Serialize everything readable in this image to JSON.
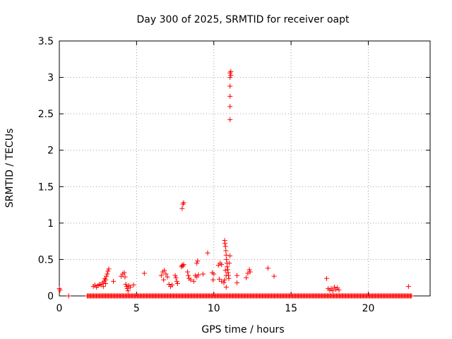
{
  "chart_data": {
    "type": "scatter",
    "title": "Day 300 of 2025, SRMTID for receiver oapt",
    "xlabel": "GPS time / hours",
    "ylabel": "SRMTID / TECUs",
    "xlim": [
      0,
      24
    ],
    "ylim": [
      0,
      3.5
    ],
    "xticks": [
      0,
      5,
      10,
      15,
      20
    ],
    "yticks": [
      0,
      0.5,
      1,
      1.5,
      2,
      2.5,
      3,
      3.5
    ],
    "ytick_labels": [
      "0",
      "0.5",
      "1",
      "1.5",
      "2",
      "2.5",
      "3",
      "3.5"
    ],
    "grid": true,
    "marker": "+",
    "color": "#ff0000",
    "zero_band": {
      "x_start": 1.8,
      "x_end": 22.8,
      "step": 0.06,
      "y": 0
    },
    "points": [
      [
        0.0,
        0.1
      ],
      [
        0.05,
        0.08
      ],
      [
        0.6,
        0.0
      ],
      [
        2.2,
        0.13
      ],
      [
        2.3,
        0.15
      ],
      [
        2.4,
        0.12
      ],
      [
        2.5,
        0.14
      ],
      [
        2.6,
        0.16
      ],
      [
        2.7,
        0.15
      ],
      [
        2.8,
        0.18
      ],
      [
        2.9,
        0.2
      ],
      [
        2.95,
        0.24
      ],
      [
        3.0,
        0.22
      ],
      [
        3.05,
        0.27
      ],
      [
        3.1,
        0.3
      ],
      [
        3.15,
        0.34
      ],
      [
        3.2,
        0.37
      ],
      [
        3.0,
        0.17
      ],
      [
        2.85,
        0.13
      ],
      [
        3.5,
        0.2
      ],
      [
        4.0,
        0.27
      ],
      [
        4.1,
        0.3
      ],
      [
        4.2,
        0.32
      ],
      [
        4.25,
        0.26
      ],
      [
        4.3,
        0.16
      ],
      [
        4.35,
        0.13
      ],
      [
        4.4,
        0.1
      ],
      [
        4.45,
        0.07
      ],
      [
        4.5,
        0.14
      ],
      [
        4.6,
        0.12
      ],
      [
        4.8,
        0.15
      ],
      [
        5.5,
        0.31
      ],
      [
        6.6,
        0.28
      ],
      [
        6.7,
        0.33
      ],
      [
        6.8,
        0.35
      ],
      [
        6.9,
        0.3
      ],
      [
        7.0,
        0.26
      ],
      [
        6.75,
        0.22
      ],
      [
        7.1,
        0.16
      ],
      [
        7.2,
        0.13
      ],
      [
        7.3,
        0.15
      ],
      [
        7.5,
        0.28
      ],
      [
        7.55,
        0.25
      ],
      [
        7.6,
        0.2
      ],
      [
        7.65,
        0.17
      ],
      [
        7.9,
        0.4
      ],
      [
        7.95,
        0.42
      ],
      [
        8.0,
        0.41
      ],
      [
        8.05,
        0.43
      ],
      [
        7.95,
        1.2
      ],
      [
        8.0,
        1.26
      ],
      [
        8.05,
        1.28
      ],
      [
        8.3,
        0.33
      ],
      [
        8.35,
        0.28
      ],
      [
        8.4,
        0.24
      ],
      [
        8.5,
        0.22
      ],
      [
        8.7,
        0.2
      ],
      [
        8.8,
        0.28
      ],
      [
        8.9,
        0.26
      ],
      [
        9.0,
        0.29
      ],
      [
        8.9,
        0.45
      ],
      [
        8.95,
        0.48
      ],
      [
        9.3,
        0.3
      ],
      [
        9.6,
        0.59
      ],
      [
        9.9,
        0.32
      ],
      [
        10.0,
        0.3
      ],
      [
        9.95,
        0.22
      ],
      [
        10.3,
        0.42
      ],
      [
        10.4,
        0.45
      ],
      [
        10.5,
        0.43
      ],
      [
        10.35,
        0.23
      ],
      [
        10.5,
        0.2
      ],
      [
        10.7,
        0.76
      ],
      [
        10.72,
        0.72
      ],
      [
        10.75,
        0.68
      ],
      [
        10.78,
        0.62
      ],
      [
        10.8,
        0.56
      ],
      [
        10.82,
        0.5
      ],
      [
        10.85,
        0.45
      ],
      [
        10.87,
        0.4
      ],
      [
        10.9,
        0.36
      ],
      [
        10.92,
        0.32
      ],
      [
        10.95,
        0.28
      ],
      [
        10.97,
        0.24
      ],
      [
        10.75,
        0.35
      ],
      [
        10.8,
        0.28
      ],
      [
        10.7,
        0.22
      ],
      [
        10.65,
        0.18
      ],
      [
        11.05,
        0.55
      ],
      [
        11.0,
        0.45
      ],
      [
        10.8,
        0.12
      ],
      [
        11.05,
        2.42
      ],
      [
        11.05,
        2.6
      ],
      [
        11.05,
        2.74
      ],
      [
        11.05,
        2.88
      ],
      [
        11.05,
        3.0
      ],
      [
        11.1,
        3.03
      ],
      [
        11.05,
        3.06
      ],
      [
        11.1,
        3.08
      ],
      [
        11.5,
        0.18
      ],
      [
        11.5,
        0.28
      ],
      [
        12.1,
        0.25
      ],
      [
        12.2,
        0.31
      ],
      [
        12.3,
        0.36
      ],
      [
        12.35,
        0.33
      ],
      [
        13.5,
        0.38
      ],
      [
        13.9,
        0.27
      ],
      [
        17.3,
        0.24
      ],
      [
        17.4,
        0.1
      ],
      [
        17.5,
        0.08
      ],
      [
        17.6,
        0.1
      ],
      [
        17.8,
        0.12
      ],
      [
        17.9,
        0.09
      ],
      [
        18.0,
        0.11
      ],
      [
        18.1,
        0.08
      ],
      [
        17.7,
        0.07
      ],
      [
        22.6,
        0.13
      ]
    ]
  }
}
